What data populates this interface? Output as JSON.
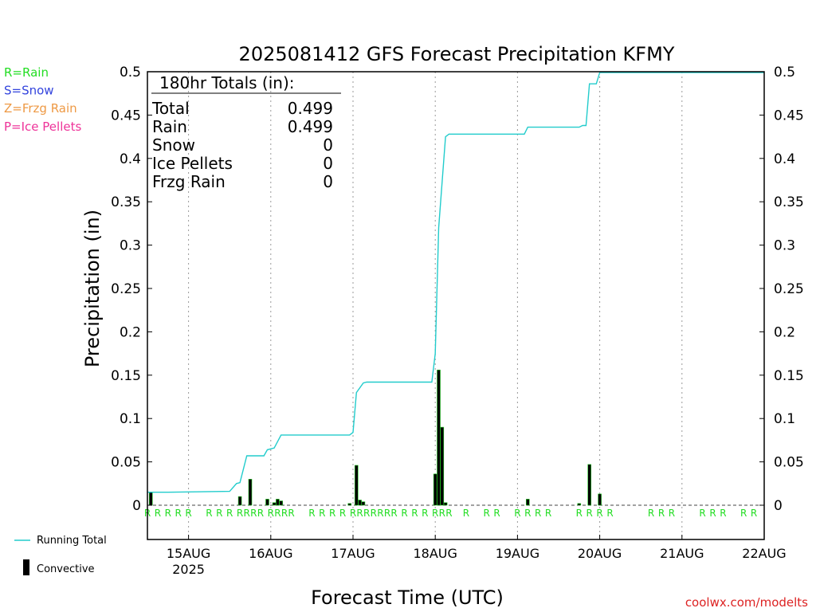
{
  "legend_types": [
    {
      "text": "R=Rain",
      "color": "#22dd22"
    },
    {
      "text": "S=Snow",
      "color": "#3344dd"
    },
    {
      "text": "Z=Frzg Rain",
      "color": "#ee9944"
    },
    {
      "text": "P=Ice Pellets",
      "color": "#ee3399"
    }
  ],
  "bottom_legend": {
    "running_total": "Running Total",
    "convective": "Convective"
  },
  "credit": "coolwx.com/modelts",
  "totals": {
    "header": "180hr Totals (in):",
    "rows": [
      {
        "label": "Total",
        "value": "0.499"
      },
      {
        "label": "Rain",
        "value": "0.499"
      },
      {
        "label": "Snow",
        "value": "0"
      },
      {
        "label": "Ice Pellets",
        "value": "0"
      },
      {
        "label": "Frzg Rain",
        "value": "0"
      }
    ]
  },
  "colors": {
    "running_total": "#22cccc",
    "bar_fill": "#000000",
    "bar_edge": "#22cc22",
    "rain_marker": "#22dd22",
    "credit": "#dd2222"
  },
  "chart_data": {
    "type": "bar",
    "title": "2025081412 GFS Forecast Precipitation KFMY",
    "xlabel": "Forecast Time (UTC)",
    "ylabel": "Precipitation (in)",
    "ylim": [
      0,
      0.5
    ],
    "yticks": [
      "0",
      "0.05",
      "0.1",
      "0.15",
      "0.2",
      "0.25",
      "0.3",
      "0.35",
      "0.4",
      "0.45",
      "0.5"
    ],
    "x_start": "2025-08-14 12Z",
    "x_end": "2025-08-22 00Z",
    "xticks": [
      {
        "label": "15AUG",
        "sub": "2025",
        "time": "2025-08-15 00Z"
      },
      {
        "label": "16AUG",
        "time": "2025-08-16 00Z"
      },
      {
        "label": "17AUG",
        "time": "2025-08-17 00Z"
      },
      {
        "label": "18AUG",
        "time": "2025-08-18 00Z"
      },
      {
        "label": "19AUG",
        "time": "2025-08-19 00Z"
      },
      {
        "label": "20AUG",
        "time": "2025-08-20 00Z"
      },
      {
        "label": "21AUG",
        "time": "2025-08-21 00Z"
      },
      {
        "label": "22AUG",
        "time": "2025-08-22 00Z"
      }
    ],
    "grid": "dotted vertical at day boundaries",
    "series": [
      {
        "name": "Running Total",
        "kind": "line",
        "points": [
          [
            "2025-08-14 12Z",
            0.015
          ],
          [
            "2025-08-14 18Z",
            0.015
          ],
          [
            "2025-08-15 12Z",
            0.016
          ],
          [
            "2025-08-15 14Z",
            0.025
          ],
          [
            "2025-08-15 15Z",
            0.026
          ],
          [
            "2025-08-15 17Z",
            0.057
          ],
          [
            "2025-08-15 22Z",
            0.057
          ],
          [
            "2025-08-15 23Z",
            0.064
          ],
          [
            "2025-08-16 01Z",
            0.066
          ],
          [
            "2025-08-16 03Z",
            0.081
          ],
          [
            "2025-08-16 23Z",
            0.081
          ],
          [
            "2025-08-17 00Z",
            0.084
          ],
          [
            "2025-08-17 01Z",
            0.13
          ],
          [
            "2025-08-17 03Z",
            0.141
          ],
          [
            "2025-08-17 04Z",
            0.142
          ],
          [
            "2025-08-17 23Z",
            0.142
          ],
          [
            "2025-08-18 00Z",
            0.175
          ],
          [
            "2025-08-18 01Z",
            0.32
          ],
          [
            "2025-08-18 03Z",
            0.425
          ],
          [
            "2025-08-18 04Z",
            0.428
          ],
          [
            "2025-08-19 02Z",
            0.428
          ],
          [
            "2025-08-19 03Z",
            0.436
          ],
          [
            "2025-08-19 18Z",
            0.436
          ],
          [
            "2025-08-19 19Z",
            0.438
          ],
          [
            "2025-08-19 20Z",
            0.438
          ],
          [
            "2025-08-19 21Z",
            0.486
          ],
          [
            "2025-08-19 23Z",
            0.486
          ],
          [
            "2025-08-20 00Z",
            0.499
          ],
          [
            "2025-08-22 00Z",
            0.499
          ]
        ]
      },
      {
        "name": "Convective",
        "kind": "bar",
        "points": [
          [
            "2025-08-14 13Z",
            0.015
          ],
          [
            "2025-08-15 15Z",
            0.01
          ],
          [
            "2025-08-15 18Z",
            0.03
          ],
          [
            "2025-08-15 23Z",
            0.007
          ],
          [
            "2025-08-16 01Z",
            0.003
          ],
          [
            "2025-08-16 02Z",
            0.007
          ],
          [
            "2025-08-16 03Z",
            0.005
          ],
          [
            "2025-08-16 23Z",
            0.002
          ],
          [
            "2025-08-17 01Z",
            0.046
          ],
          [
            "2025-08-17 02Z",
            0.006
          ],
          [
            "2025-08-17 03Z",
            0.004
          ],
          [
            "2025-08-18 00Z",
            0.036
          ],
          [
            "2025-08-18 01Z",
            0.156
          ],
          [
            "2025-08-18 02Z",
            0.09
          ],
          [
            "2025-08-18 03Z",
            0.003
          ],
          [
            "2025-08-19 03Z",
            0.007
          ],
          [
            "2025-08-19 18Z",
            0.002
          ],
          [
            "2025-08-19 21Z",
            0.047
          ],
          [
            "2025-08-20 00Z",
            0.013
          ]
        ]
      }
    ],
    "precip_type_markers": {
      "label": "R",
      "times": [
        "2025-08-14 12Z",
        "2025-08-14 15Z",
        "2025-08-14 18Z",
        "2025-08-14 21Z",
        "2025-08-15 00Z",
        "2025-08-15 06Z",
        "2025-08-15 09Z",
        "2025-08-15 12Z",
        "2025-08-15 15Z",
        "2025-08-15 17Z",
        "2025-08-15 19Z",
        "2025-08-15 21Z",
        "2025-08-16 00Z",
        "2025-08-16 02Z",
        "2025-08-16 04Z",
        "2025-08-16 06Z",
        "2025-08-16 12Z",
        "2025-08-16 15Z",
        "2025-08-16 18Z",
        "2025-08-16 21Z",
        "2025-08-17 00Z",
        "2025-08-17 02Z",
        "2025-08-17 04Z",
        "2025-08-17 06Z",
        "2025-08-17 08Z",
        "2025-08-17 10Z",
        "2025-08-17 12Z",
        "2025-08-17 15Z",
        "2025-08-17 18Z",
        "2025-08-17 21Z",
        "2025-08-18 00Z",
        "2025-08-18 02Z",
        "2025-08-18 04Z",
        "2025-08-18 09Z",
        "2025-08-18 15Z",
        "2025-08-18 18Z",
        "2025-08-19 00Z",
        "2025-08-19 03Z",
        "2025-08-19 06Z",
        "2025-08-19 09Z",
        "2025-08-19 18Z",
        "2025-08-19 21Z",
        "2025-08-20 00Z",
        "2025-08-20 03Z",
        "2025-08-20 15Z",
        "2025-08-20 18Z",
        "2025-08-20 21Z",
        "2025-08-21 06Z",
        "2025-08-21 09Z",
        "2025-08-21 12Z",
        "2025-08-21 18Z",
        "2025-08-21 21Z"
      ]
    }
  }
}
